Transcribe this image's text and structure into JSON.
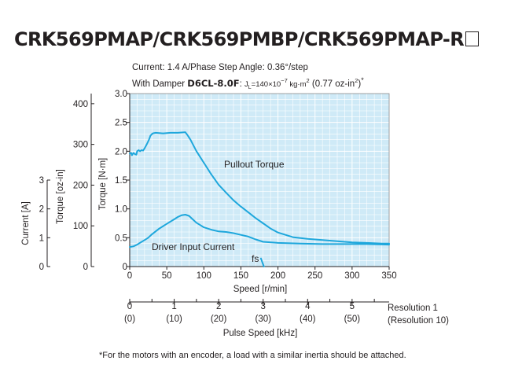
{
  "title": "CRK569PMAP/CRK569PMBP/CRK569PMAP-R",
  "conditions": {
    "line1": "Current: 1.4 A/Phase  Step Angle: 0.36°/step",
    "line2_prefix": "With Damper ",
    "damper_model": "D6CL-8.0F",
    "line2_sep": ": ",
    "jl_symbol": "J",
    "jl_sub": "L",
    "jl_value": "=140×10",
    "jl_exp": "−7",
    "jl_unit_a": " kg·m",
    "jl_unit_exp": "2",
    "jl_paren_open": " (0.77 oz-in",
    "jl_paren_exp": "2",
    "jl_paren_close": ")",
    "asterisk": "*"
  },
  "footnote": "*For the motors with an encoder, a load with a similar inertia should be attached.",
  "colors": {
    "curve": "#1ea7dc",
    "plot_bg": "#cfeaf7",
    "grid": "#ffffff",
    "axis": "#231f20"
  },
  "chart_data": {
    "type": "line",
    "xlabel": "Speed [r/min]",
    "xlim": [
      0,
      350
    ],
    "xticks": [
      0,
      50,
      100,
      150,
      200,
      250,
      300,
      350
    ],
    "ylabel": "Torque [N·m]",
    "ylim": [
      0,
      3.0
    ],
    "yticks": [
      "0",
      "0.5",
      "1.0",
      "1.5",
      "2.0",
      "2.5",
      "3.0"
    ],
    "grid": true,
    "secondary_torque_axis": {
      "label": "Torque [oz-in]",
      "ticks": [
        0,
        100,
        200,
        300,
        400
      ],
      "nm_per_unit": 0.0070616
    },
    "current_axis": {
      "label": "Current [A]",
      "ticks": [
        0,
        1,
        2,
        3
      ],
      "nm_per_unit": 0.5
    },
    "pulse_axis": {
      "label": "Pulse Speed [kHz]",
      "ticks": [
        "0",
        "1",
        "2",
        "3",
        "4",
        "5"
      ],
      "ticks_res10": [
        "(0)",
        "(10)",
        "(20)",
        "(30)",
        "(40)",
        "(50)"
      ],
      "speed_per_khz": 60,
      "resolution1_label": "Resolution 1",
      "resolution10_label": "(Resolution 10)"
    },
    "series": [
      {
        "name": "Pullout Torque",
        "x": [
          0,
          2,
          3,
          5,
          7,
          9,
          10,
          12,
          14,
          16,
          18,
          20,
          23,
          26,
          28,
          31,
          35,
          45,
          55,
          65,
          75,
          78,
          82,
          90,
          100,
          110,
          120,
          130,
          140,
          150,
          160,
          170,
          180,
          190,
          200,
          220,
          240,
          260,
          280,
          300,
          320,
          340,
          350
        ],
        "y": [
          1.96,
          1.97,
          1.93,
          1.97,
          1.95,
          1.94,
          2.0,
          2.02,
          2.0,
          2.02,
          2.01,
          2.05,
          2.12,
          2.2,
          2.27,
          2.31,
          2.32,
          2.31,
          2.32,
          2.32,
          2.33,
          2.28,
          2.2,
          2.0,
          1.8,
          1.6,
          1.42,
          1.28,
          1.15,
          1.04,
          0.94,
          0.84,
          0.75,
          0.66,
          0.59,
          0.51,
          0.48,
          0.46,
          0.44,
          0.42,
          0.41,
          0.4,
          0.4
        ]
      },
      {
        "name": "Driver Input Current",
        "x": [
          0,
          5,
          10,
          15,
          20,
          25,
          30,
          40,
          50,
          60,
          65,
          70,
          75,
          80,
          85,
          90,
          95,
          100,
          110,
          120,
          130,
          140,
          150,
          160,
          170,
          180,
          200,
          230,
          260,
          290,
          320,
          350
        ],
        "y": [
          0.34,
          0.35,
          0.38,
          0.42,
          0.46,
          0.5,
          0.56,
          0.66,
          0.74,
          0.82,
          0.86,
          0.89,
          0.9,
          0.88,
          0.82,
          0.76,
          0.72,
          0.68,
          0.64,
          0.61,
          0.6,
          0.58,
          0.55,
          0.52,
          0.47,
          0.43,
          0.41,
          0.4,
          0.39,
          0.39,
          0.39,
          0.38
        ]
      },
      {
        "name": "fs",
        "x": [
          177,
          179,
          181
        ],
        "y": [
          0.14,
          0.07,
          0
        ]
      }
    ]
  }
}
